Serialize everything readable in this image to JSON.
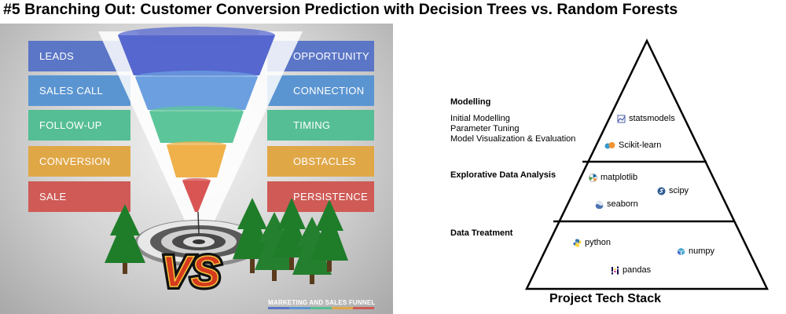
{
  "title": "#5 Branching Out: Customer Conversion Prediction with Decision Trees vs. Random Forests",
  "funnel": {
    "rows": [
      {
        "left": "LEADS",
        "right": "OPPORTUNITY",
        "color": "#5b76c6",
        "cone": "#5667cf"
      },
      {
        "left": "SALES CALL",
        "right": "CONNECTION",
        "color": "#5b95d1",
        "cone": "#6b9fe0"
      },
      {
        "left": "FOLLOW-UP",
        "right": "TIMING",
        "color": "#55be94",
        "cone": "#5cc69a"
      },
      {
        "left": "CONVERSION",
        "right": "OBSTACLES",
        "color": "#e0a747",
        "cone": "#f0b04a"
      },
      {
        "left": "SALE",
        "right": "PERSISTENCE",
        "color": "#cf5a56",
        "cone": "#d85553"
      }
    ],
    "vs_text": "VS",
    "footer": "MARKETING AND SALES FUNNEL"
  },
  "pyramid": {
    "sections": [
      {
        "heading": "Modelling",
        "items": [
          "Initial Modelling",
          "Parameter Tuning",
          "Model Visualization & Evaluation"
        ]
      },
      {
        "heading": "Explorative Data Analysis",
        "items": []
      },
      {
        "heading": "Data Treatment",
        "items": []
      }
    ],
    "libraries": [
      {
        "name": "statsmodels",
        "icon": "statsmodels-icon",
        "color": "#4a5ea8"
      },
      {
        "name": "Scikit-learn",
        "icon": "scikit-learn-icon",
        "color": "#f09436"
      },
      {
        "name": "matplotlib",
        "icon": "matplotlib-icon",
        "color": "#1f6fa8"
      },
      {
        "name": "scipy",
        "icon": "scipy-icon",
        "color": "#2c5a92"
      },
      {
        "name": "seaborn",
        "icon": "seaborn-icon",
        "color": "#4c72b0"
      },
      {
        "name": "python",
        "icon": "python-icon",
        "color": "#3776ab"
      },
      {
        "name": "numpy",
        "icon": "numpy-icon",
        "color": "#4dabcf"
      },
      {
        "name": "pandas",
        "icon": "pandas-icon",
        "color": "#150458"
      }
    ],
    "caption": "Project Tech Stack"
  }
}
